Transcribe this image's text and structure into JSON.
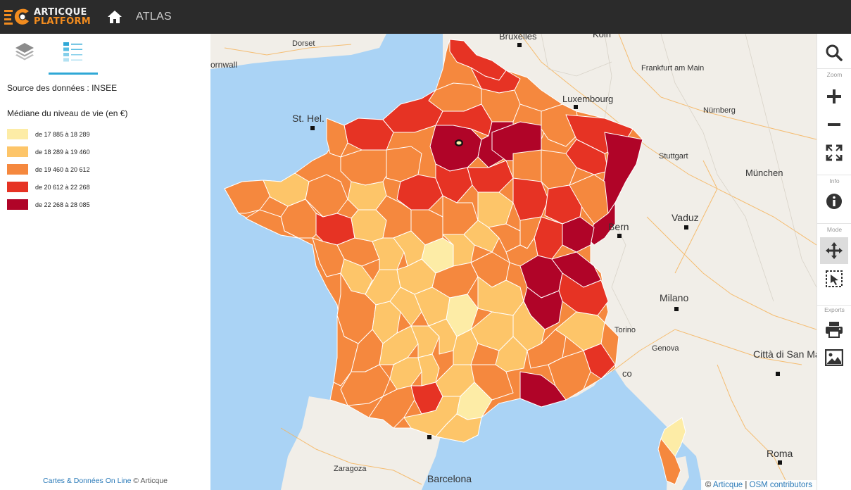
{
  "header": {
    "logo_line1": "ARTICQUE",
    "logo_line2": "PLATFORM",
    "nav_item": "ATLAS",
    "colors": {
      "bar": "#2b2b2b",
      "brand": "#f28c1f"
    }
  },
  "panel": {
    "tabs": [
      "layers-icon",
      "legend-icon"
    ],
    "source": "Source des données : INSEE",
    "legend_title": "Médiane du niveau de vie (en €)",
    "legend": [
      {
        "label": "de 17 885 à 18 289",
        "color": "#fdeca6"
      },
      {
        "label": "de 18 289 à 19 460",
        "color": "#fdc569"
      },
      {
        "label": "de 19 460 à 20 612",
        "color": "#f5883e"
      },
      {
        "label": "de 20 612 à 22 268",
        "color": "#e63324"
      },
      {
        "label": "de 22 268 à 28 085",
        "color": "#b00428"
      }
    ],
    "footer_link": "Cartes & Données On Line",
    "footer_text": "© Articque"
  },
  "map": {
    "cities": [
      "Dorset",
      "Bruxelles",
      "Köln",
      "ornwall",
      "Frankfurt am Main",
      "Luxembourg",
      "St. Hel.",
      "Nürnberg",
      "Stuttgart",
      "München",
      "Vaduz",
      "Bern",
      "Milano",
      "Torino",
      "Genova",
      "Città di San Marino",
      "Roma",
      "Zaragoza",
      "Barcelona",
      "co"
    ],
    "attribution_link1": "Articque",
    "attribution_sep": "|",
    "attribution_link2": "OSM contributors",
    "attribution_prefix": "©"
  },
  "toolbar": {
    "search": "search-icon",
    "zoom_label": "Zoom",
    "zoom_in": "plus-icon",
    "zoom_out": "minus-icon",
    "fullscreen": "expand-icon",
    "info_label": "Info",
    "info": "info-icon",
    "mode_label": "Mode",
    "pan": "move-icon",
    "select": "select-icon",
    "exports_label": "Exports",
    "print": "print-icon",
    "image": "image-icon"
  }
}
